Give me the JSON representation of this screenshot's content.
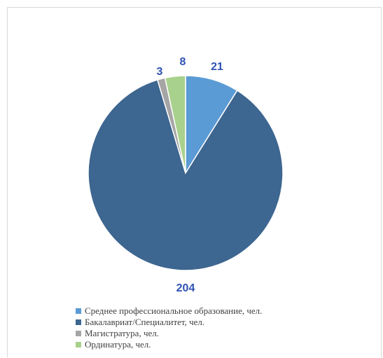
{
  "chart_data": {
    "type": "pie",
    "series": [
      {
        "label": "Среднее профессиональное образование, чел.",
        "value": 21,
        "color": "#5b9bd5"
      },
      {
        "label": "Бакалавриат/Специалитет, чел.",
        "value": 204,
        "color": "#3d6690"
      },
      {
        "label": "Магистратура, чел.",
        "value": 3,
        "color": "#a5a5a5"
      },
      {
        "label": "Ординатура, чел.",
        "value": 8,
        "color": "#a9d18e"
      }
    ],
    "data_label_color": "#2e52b2",
    "legend_position": "bottom-left",
    "start_angle": "12 o'clock, clockwise"
  }
}
